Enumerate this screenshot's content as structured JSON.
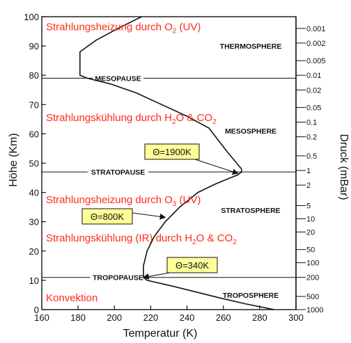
{
  "chart_data": {
    "type": "line",
    "xlabel": "Temperatur (K)",
    "ylabel": "Höhe (Km)",
    "y2label": "Druck (mBar)",
    "xlim": [
      160,
      300
    ],
    "ylim": [
      0,
      100
    ],
    "x_ticks": [
      "160",
      "180",
      "200",
      "220",
      "240",
      "260",
      "280",
      "300"
    ],
    "y_ticks": [
      "0",
      "10",
      "20",
      "30",
      "40",
      "50",
      "60",
      "70",
      "80",
      "90",
      "100"
    ],
    "pressure_ticks": [
      {
        "label": "0.001",
        "km": 96.0
      },
      {
        "label": "0.002",
        "km": 91.0
      },
      {
        "label": "0.005",
        "km": 85.0
      },
      {
        "label": "0.01",
        "km": 80.0
      },
      {
        "label": "0.02",
        "km": 75.0
      },
      {
        "label": "0.05",
        "km": 69.0
      },
      {
        "label": "0.1",
        "km": 64.0
      },
      {
        "label": "0.2",
        "km": 59.0
      },
      {
        "label": "0.5",
        "km": 52.5
      },
      {
        "label": "1",
        "km": 47.5
      },
      {
        "label": "2",
        "km": 42.5
      },
      {
        "label": "5",
        "km": 35.5
      },
      {
        "label": "10",
        "km": 31.0
      },
      {
        "label": "20",
        "km": 26.5
      },
      {
        "label": "50",
        "km": 20.5
      },
      {
        "label": "100",
        "km": 16.0
      },
      {
        "label": "200",
        "km": 11.0
      },
      {
        "label": "500",
        "km": 4.5
      },
      {
        "label": "1000",
        "km": 0.0
      }
    ],
    "series": [
      {
        "x": [
          288,
          272,
          258,
          245,
          232,
          218,
          216,
          216,
          218,
          222,
          228,
          236,
          246,
          256,
          264,
          268,
          270,
          270,
          262,
          252,
          240,
          226,
          212,
          198,
          185,
          181,
          181,
          190,
          202,
          215
        ],
        "y": [
          0,
          2,
          4,
          6,
          8,
          10,
          11,
          15,
          20,
          25,
          30,
          35,
          40,
          43,
          45,
          46,
          47,
          48,
          54,
          62,
          66,
          70,
          74,
          77,
          79,
          80,
          88,
          92,
          96,
          100
        ]
      }
    ],
    "levels": [
      {
        "label": "MESOPAUSE",
        "km": 79
      },
      {
        "label": "STRATOPAUSE",
        "km": 47
      },
      {
        "label": "TROPOPAUSE",
        "km": 11
      }
    ],
    "layers": [
      {
        "label": "THERMOSPHERE",
        "km": 90
      },
      {
        "label": "MESOSPHERE",
        "km": 61
      },
      {
        "label": "STRATOSPHERE",
        "km": 34
      },
      {
        "label": "TROPOSPHERE",
        "km": 5
      }
    ],
    "annotations_red": [
      {
        "pre": "Strahlungsheizung durch O",
        "sub": "2",
        "post": " (UV)",
        "km": 96.5
      },
      {
        "pre": "Strahlungskühlung durch H",
        "sub": "2",
        "post": "O & CO",
        "sub2": "2",
        "km": 65.5
      },
      {
        "pre": "Strahlungsheizung durch O",
        "sub": "3",
        "post": " (UV)",
        "km": 37.5
      },
      {
        "pre": "Strahlungskühlung (IR) durch H",
        "sub": "2",
        "post": "O & CO",
        "sub2": "2",
        "km": 24.5
      },
      {
        "pre": "Konvektion",
        "sub": "",
        "post": "",
        "km": 4
      }
    ],
    "boxes": [
      {
        "label": "Θ=1900K",
        "target": [
          268,
          46.5
        ]
      },
      {
        "label": "Θ=800K",
        "target": [
          228,
          31.5
        ]
      },
      {
        "label": "Θ=340K",
        "target": [
          216,
          11.0
        ]
      }
    ]
  }
}
